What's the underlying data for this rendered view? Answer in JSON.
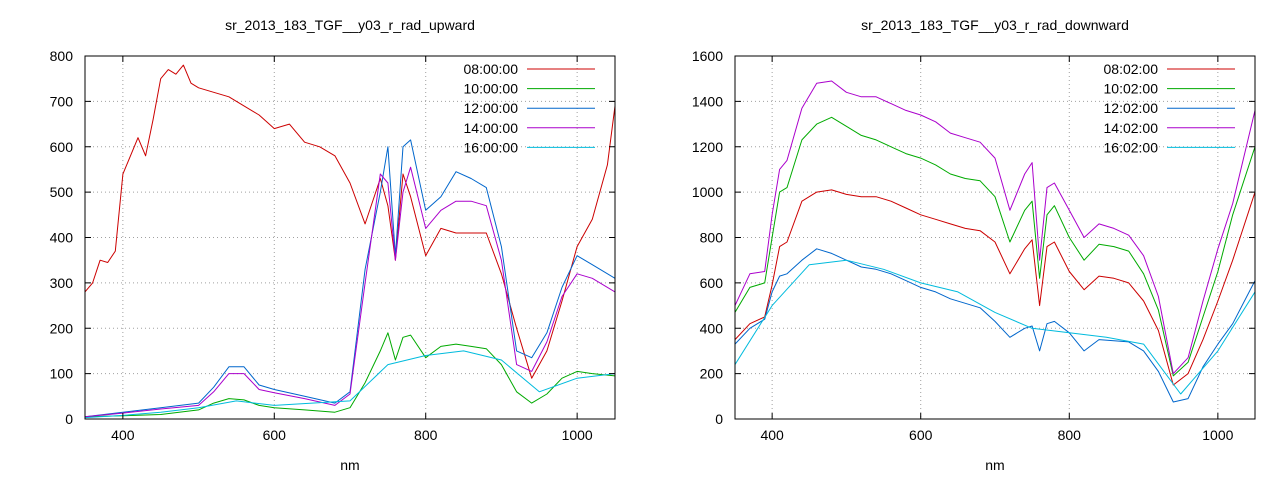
{
  "chart_data": [
    {
      "type": "line",
      "title": "sr_2013_183_TGF__y03_r_rad_upward",
      "xlabel": "nm",
      "ylabel": "",
      "xlim": [
        350,
        1050
      ],
      "ylim": [
        0,
        800
      ],
      "xticks": [
        400,
        600,
        800,
        1000
      ],
      "yticks": [
        0,
        100,
        200,
        300,
        400,
        500,
        600,
        700,
        800
      ],
      "grid": true,
      "legend": "top-right",
      "series": [
        {
          "name": "08:00:00",
          "color": "#cc0000",
          "x": [
            350,
            360,
            370,
            380,
            390,
            400,
            420,
            430,
            440,
            450,
            460,
            470,
            480,
            490,
            500,
            520,
            540,
            560,
            580,
            600,
            620,
            640,
            660,
            680,
            700,
            720,
            740,
            750,
            760,
            770,
            780,
            800,
            820,
            840,
            860,
            880,
            900,
            920,
            940,
            960,
            980,
            1000,
            1020,
            1040,
            1050
          ],
          "y": [
            280,
            300,
            350,
            345,
            370,
            540,
            620,
            580,
            660,
            750,
            770,
            760,
            780,
            740,
            730,
            720,
            710,
            690,
            670,
            640,
            650,
            610,
            600,
            580,
            520,
            430,
            530,
            470,
            350,
            540,
            490,
            360,
            420,
            410,
            410,
            410,
            320,
            200,
            90,
            150,
            260,
            380,
            440,
            560,
            690
          ]
        },
        {
          "name": "10:00:00",
          "color": "#00aa00",
          "x": [
            350,
            400,
            450,
            500,
            520,
            540,
            560,
            580,
            600,
            640,
            680,
            700,
            720,
            740,
            750,
            760,
            770,
            780,
            800,
            820,
            840,
            860,
            880,
            900,
            920,
            940,
            960,
            980,
            1000,
            1020,
            1050
          ],
          "y": [
            5,
            7,
            10,
            20,
            35,
            45,
            42,
            30,
            25,
            20,
            15,
            25,
            80,
            150,
            190,
            130,
            180,
            185,
            135,
            160,
            165,
            160,
            155,
            120,
            60,
            35,
            55,
            90,
            105,
            100,
            95
          ]
        },
        {
          "name": "12:00:00",
          "color": "#0066cc",
          "x": [
            350,
            400,
            450,
            500,
            520,
            540,
            560,
            580,
            600,
            640,
            680,
            700,
            720,
            740,
            750,
            760,
            770,
            780,
            800,
            820,
            840,
            860,
            880,
            900,
            920,
            940,
            960,
            980,
            1000,
            1020,
            1050
          ],
          "y": [
            5,
            15,
            25,
            35,
            70,
            115,
            115,
            75,
            65,
            50,
            35,
            60,
            330,
            500,
            600,
            360,
            600,
            615,
            460,
            490,
            545,
            530,
            510,
            380,
            150,
            135,
            190,
            290,
            360,
            340,
            310
          ]
        },
        {
          "name": "14:00:00",
          "color": "#aa00cc",
          "x": [
            350,
            400,
            450,
            500,
            520,
            540,
            560,
            580,
            600,
            640,
            680,
            700,
            720,
            740,
            750,
            760,
            770,
            780,
            800,
            820,
            840,
            860,
            880,
            900,
            920,
            940,
            960,
            980,
            1000,
            1020,
            1050
          ],
          "y": [
            5,
            13,
            22,
            30,
            60,
            100,
            100,
            65,
            58,
            45,
            30,
            55,
            300,
            540,
            520,
            350,
            500,
            555,
            420,
            460,
            480,
            480,
            470,
            350,
            120,
            105,
            170,
            270,
            320,
            310,
            280
          ]
        },
        {
          "name": "16:00:00",
          "color": "#00bbdd",
          "x": [
            350,
            400,
            450,
            500,
            550,
            600,
            700,
            750,
            800,
            850,
            900,
            950,
            1000,
            1050
          ],
          "y": [
            3,
            8,
            15,
            25,
            40,
            30,
            40,
            120,
            140,
            150,
            130,
            60,
            90,
            100
          ]
        }
      ]
    },
    {
      "type": "line",
      "title": "sr_2013_183_TGF__y03_r_rad_downward",
      "xlabel": "nm",
      "ylabel": "",
      "xlim": [
        350,
        1050
      ],
      "ylim": [
        0,
        1600
      ],
      "xticks": [
        400,
        600,
        800,
        1000
      ],
      "yticks": [
        0,
        200,
        400,
        600,
        800,
        1000,
        1200,
        1400,
        1600
      ],
      "grid": true,
      "legend": "top-right",
      "series": [
        {
          "name": "08:02:00",
          "color": "#cc0000",
          "x": [
            350,
            370,
            390,
            400,
            410,
            420,
            440,
            460,
            480,
            500,
            520,
            540,
            560,
            580,
            600,
            620,
            640,
            660,
            680,
            700,
            720,
            740,
            750,
            760,
            770,
            780,
            800,
            820,
            840,
            860,
            880,
            900,
            920,
            940,
            960,
            980,
            1000,
            1020,
            1050
          ],
          "y": [
            350,
            420,
            450,
            590,
            760,
            780,
            960,
            1000,
            1010,
            990,
            980,
            980,
            960,
            930,
            900,
            880,
            860,
            840,
            830,
            780,
            640,
            750,
            790,
            500,
            760,
            780,
            650,
            570,
            630,
            620,
            600,
            520,
            390,
            150,
            200,
            350,
            520,
            700,
            1000
          ]
        },
        {
          "name": "10:02:00",
          "color": "#00aa00",
          "x": [
            350,
            370,
            390,
            400,
            410,
            420,
            440,
            460,
            480,
            500,
            520,
            540,
            560,
            580,
            600,
            620,
            640,
            660,
            680,
            700,
            720,
            740,
            750,
            760,
            770,
            780,
            800,
            820,
            840,
            860,
            880,
            900,
            920,
            940,
            960,
            980,
            1000,
            1020,
            1050
          ],
          "y": [
            470,
            580,
            600,
            800,
            1000,
            1020,
            1230,
            1300,
            1330,
            1290,
            1250,
            1230,
            1200,
            1170,
            1150,
            1120,
            1080,
            1060,
            1050,
            980,
            780,
            920,
            960,
            620,
            900,
            940,
            800,
            700,
            770,
            760,
            740,
            640,
            480,
            190,
            250,
            450,
            650,
            900,
            1200
          ]
        },
        {
          "name": "12:02:00",
          "color": "#0066cc",
          "x": [
            350,
            370,
            390,
            400,
            410,
            420,
            440,
            460,
            480,
            500,
            520,
            540,
            560,
            580,
            600,
            620,
            640,
            660,
            680,
            700,
            720,
            740,
            750,
            760,
            770,
            780,
            800,
            820,
            840,
            860,
            880,
            900,
            920,
            940,
            960,
            980,
            1000,
            1020,
            1050
          ],
          "y": [
            330,
            400,
            440,
            560,
            630,
            640,
            700,
            750,
            730,
            700,
            670,
            660,
            640,
            610,
            580,
            560,
            530,
            510,
            490,
            430,
            360,
            400,
            410,
            300,
            420,
            430,
            380,
            300,
            350,
            345,
            340,
            300,
            210,
            75,
            90,
            230,
            330,
            420,
            610
          ]
        },
        {
          "name": "14:02:00",
          "color": "#aa00cc",
          "x": [
            350,
            370,
            390,
            400,
            410,
            420,
            440,
            460,
            480,
            500,
            520,
            540,
            560,
            580,
            600,
            620,
            640,
            660,
            680,
            700,
            720,
            740,
            750,
            760,
            770,
            780,
            800,
            820,
            840,
            860,
            880,
            900,
            920,
            940,
            960,
            980,
            1000,
            1020,
            1050
          ],
          "y": [
            500,
            640,
            650,
            900,
            1100,
            1140,
            1370,
            1480,
            1490,
            1440,
            1420,
            1420,
            1390,
            1360,
            1340,
            1310,
            1260,
            1240,
            1220,
            1150,
            920,
            1080,
            1130,
            700,
            1020,
            1040,
            920,
            800,
            860,
            840,
            810,
            720,
            540,
            200,
            270,
            520,
            750,
            950,
            1360
          ]
        },
        {
          "name": "16:02:00",
          "color": "#00bbdd",
          "x": [
            350,
            400,
            450,
            500,
            550,
            600,
            650,
            700,
            750,
            800,
            850,
            900,
            950,
            1000,
            1050
          ],
          "y": [
            240,
            500,
            680,
            700,
            660,
            600,
            560,
            470,
            400,
            380,
            360,
            330,
            110,
            300,
            560
          ]
        }
      ]
    }
  ]
}
